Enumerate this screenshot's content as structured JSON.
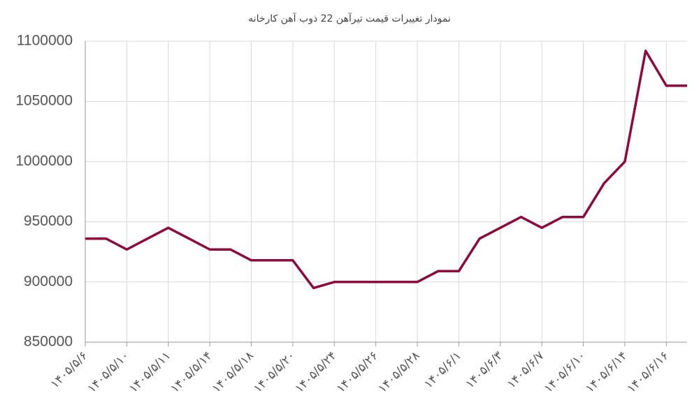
{
  "chart_data": {
    "type": "line",
    "title": "نمودار تغییرات قیمت تیرآهن 22 ذوب آهن کارخانه",
    "categories": [
      "۱۴۰۵/۵/۶",
      null,
      "۱۴۰۵/۵/۱۰",
      null,
      "۱۴۰۵/۵/۱۱",
      null,
      "۱۴۰۵/۵/۱۴",
      null,
      "۱۴۰۵/۵/۱۸",
      null,
      "۱۴۰۵/۵/۲۰",
      null,
      "۱۴۰۵/۵/۲۴",
      null,
      "۱۴۰۵/۵/۲۶",
      null,
      "۱۴۰۵/۵/۲۸",
      null,
      "۱۴۰۵/۶/۱",
      null,
      "۱۴۰۵/۶/۳",
      null,
      "۱۴۰۵/۶/۷",
      null,
      "۱۴۰۵/۶/۱۰",
      null,
      "۱۴۰۵/۶/۱۴",
      null,
      "۱۴۰۵/۶/۱۶",
      null
    ],
    "series": [
      {
        "color": "#8c0a3d",
        "values": [
          936000,
          936000,
          927000,
          936000,
          945000,
          936000,
          927000,
          927000,
          918000,
          918000,
          918000,
          895000,
          900000,
          900000,
          900000,
          900000,
          900000,
          909000,
          909000,
          936000,
          945000,
          954000,
          945000,
          954000,
          954000,
          982000,
          1000000,
          1092000,
          1063000,
          1063000
        ]
      }
    ],
    "ylim": [
      850000,
      1100000
    ],
    "yticks": [
      850000,
      900000,
      950000,
      1000000,
      1050000,
      1100000
    ],
    "grid": true
  }
}
